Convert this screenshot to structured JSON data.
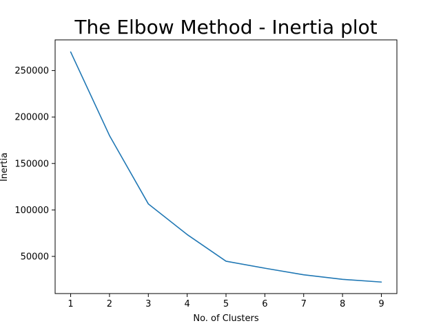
{
  "chart_data": {
    "type": "line",
    "title": "The Elbow Method - Inertia plot",
    "xlabel": "No. of Clusters",
    "ylabel": "Inertia",
    "x": [
      1,
      2,
      3,
      4,
      5,
      6,
      7,
      8,
      9
    ],
    "xticks": [
      "1",
      "2",
      "3",
      "4",
      "5",
      "6",
      "7",
      "8",
      "9"
    ],
    "yticks": [
      "50000",
      "100000",
      "150000",
      "200000",
      "250000"
    ],
    "ytick_values": [
      50000,
      100000,
      150000,
      200000,
      250000
    ],
    "xlim": [
      0.6,
      9.4
    ],
    "ylim": [
      10000,
      283000
    ],
    "grid": false,
    "series": [
      {
        "values": [
          270000,
          180000,
          106500,
          73500,
          44800,
          37300,
          30200,
          25300,
          22400
        ],
        "color": "#1f77b4"
      }
    ]
  }
}
